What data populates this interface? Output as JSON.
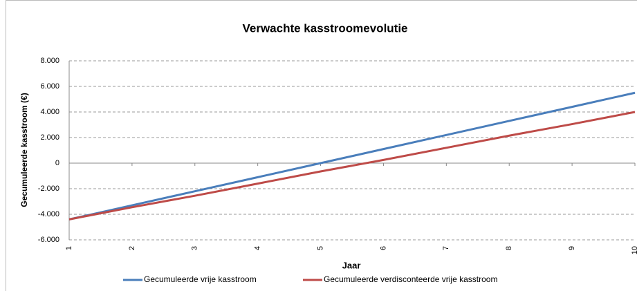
{
  "chart_data": {
    "type": "line",
    "title": "Verwachte kasstroomevolutie",
    "x_label": "Jaar",
    "y_label": "Gecumuleerde kasstroom (€)",
    "categories": [
      "1",
      "2",
      "3",
      "4",
      "5",
      "6",
      "7",
      "8",
      "9",
      "10"
    ],
    "series": [
      {
        "name": "Gecumuleerde vrije kasstroom",
        "color": "#4a7ebb",
        "values": [
          -4400,
          -3300,
          -2200,
          -1100,
          0,
          1100,
          2200,
          3300,
          4400,
          5500
        ]
      },
      {
        "name": "Gecumuleerde verdisconteerde vrije kasstroom",
        "color": "#be4b48",
        "values": [
          -4400,
          -3450,
          -2550,
          -1600,
          -650,
          250,
          1200,
          2150,
          3050,
          4000
        ]
      }
    ],
    "ylim": [
      -6000,
      8000
    ],
    "yticks": [
      {
        "value": -6000,
        "label": "-6.000"
      },
      {
        "value": -4000,
        "label": "-4.000"
      },
      {
        "value": -2000,
        "label": "-2.000"
      },
      0,
      {
        "value": 2000,
        "label": "2.000"
      },
      {
        "value": 4000,
        "label": "4.000"
      },
      {
        "value": 6000,
        "label": "6.000"
      },
      {
        "value": 8000,
        "label": "8.000"
      }
    ],
    "grid": true,
    "legend": "bottom"
  }
}
